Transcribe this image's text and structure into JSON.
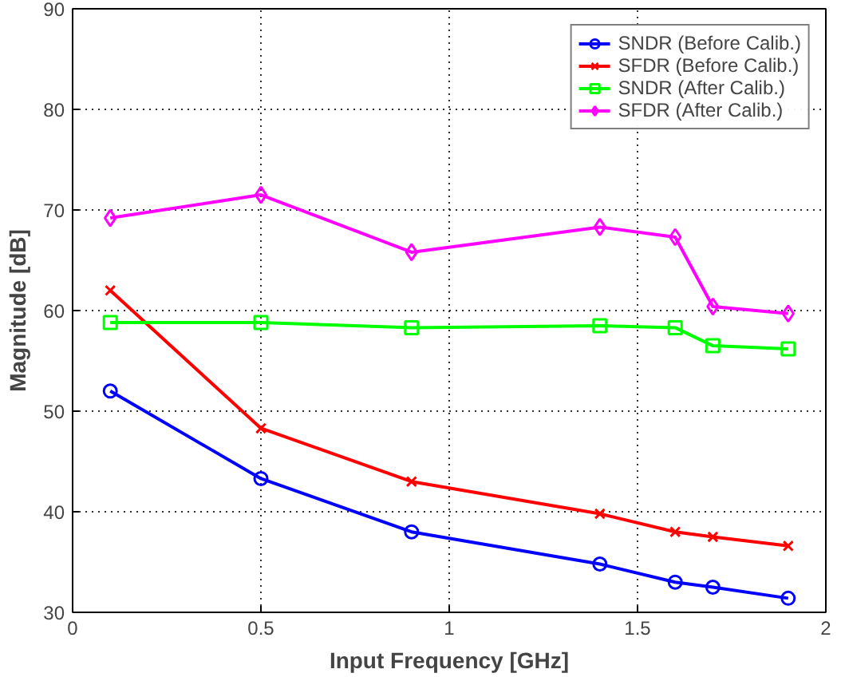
{
  "chart_data": {
    "type": "line",
    "xlabel": "Input Frequency [GHz]",
    "ylabel": "Magnitude [dB]",
    "x": [
      0.1,
      0.5,
      0.9,
      1.4,
      1.6,
      1.7,
      1.9
    ],
    "xlim": [
      0,
      2
    ],
    "ylim": [
      30,
      90
    ],
    "xticks": [
      0,
      0.5,
      1,
      1.5,
      2
    ],
    "yticks": [
      30,
      40,
      50,
      60,
      70,
      80,
      90
    ],
    "grid": true,
    "legend": "top right",
    "line_style": "solid",
    "series": [
      {
        "name": "SNDR (Before Calib.)",
        "color": "#0000ff",
        "marker": "circle",
        "values": [
          52,
          43.3,
          38,
          34.8,
          33,
          32.5,
          31.4
        ]
      },
      {
        "name": "SFDR (Before Calib.)",
        "color": "#ff0000",
        "marker": "cross",
        "values": [
          62,
          48.3,
          43,
          39.8,
          38,
          37.5,
          36.6
        ]
      },
      {
        "name": "SNDR (After Calib.)",
        "color": "#00ff00",
        "marker": "square",
        "values": [
          58.8,
          58.8,
          58.3,
          58.5,
          58.3,
          56.5,
          56.2
        ]
      },
      {
        "name": "SFDR (After Calib.)",
        "color": "#ff00ff",
        "marker": "diamond",
        "values": [
          69.2,
          71.5,
          65.8,
          68.3,
          67.3,
          60.4,
          59.7
        ]
      }
    ]
  }
}
